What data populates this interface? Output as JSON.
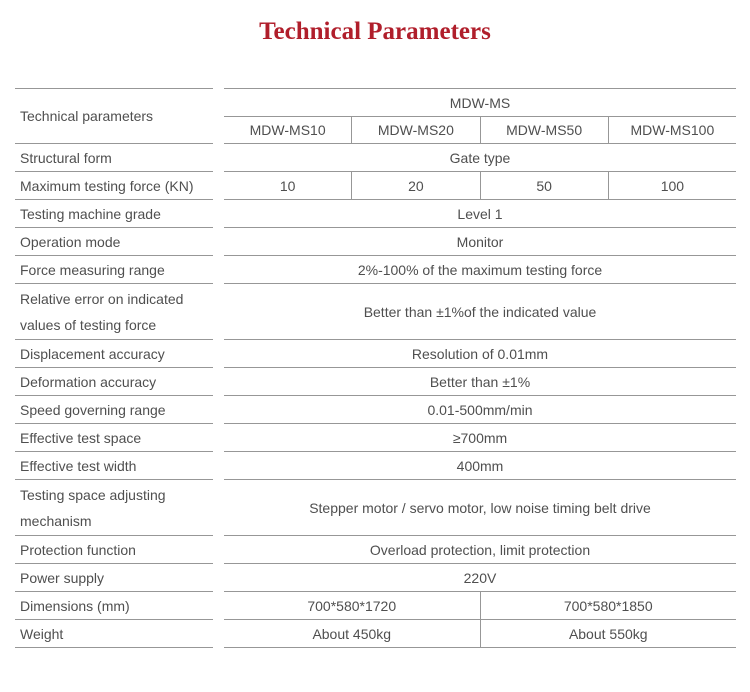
{
  "title": "Technical Parameters",
  "colors": {
    "title": "#b01e2b",
    "text": "#4f4f4f",
    "line": "#979797"
  },
  "table": {
    "header": {
      "left_label": "Technical parameters",
      "series": "MDW-MS",
      "models": [
        "MDW-MS10",
        "MDW-MS20",
        "MDW-MS50",
        "MDW-MS100"
      ]
    },
    "rows": [
      {
        "label": "Structural form",
        "value": "Gate type"
      },
      {
        "label": "Maximum testing force (KN)",
        "values": [
          "10",
          "20",
          "50",
          "100"
        ]
      },
      {
        "label": "Testing machine grade",
        "value": "Level 1"
      },
      {
        "label": "Operation mode",
        "value": "Monitor"
      },
      {
        "label": "Force measuring range",
        "value": "2%-100% of the maximum testing force"
      },
      {
        "label": "Relative error on indicated values of testing force",
        "value": "Better than ±1%of the indicated value"
      },
      {
        "label": "Displacement accuracy",
        "value": "Resolution of 0.01mm"
      },
      {
        "label": "Deformation accuracy",
        "value": "Better than ±1%"
      },
      {
        "label": "Speed governing range",
        "value": "0.01-500mm/min"
      },
      {
        "label": "Effective test space",
        "value": "≥700mm"
      },
      {
        "label": "Effective test width",
        "value": "400mm"
      },
      {
        "label": "Testing space adjusting mechanism",
        "value": "Stepper motor / servo motor, low noise timing belt drive"
      },
      {
        "label": "Protection function",
        "value": "Overload protection, limit protection"
      },
      {
        "label": "Power supply",
        "value": "220V"
      },
      {
        "label": "Dimensions (mm)",
        "values": [
          "700*580*1720",
          "700*580*1850"
        ]
      },
      {
        "label": "Weight",
        "values": [
          "About 450kg",
          "About 550kg"
        ]
      }
    ]
  }
}
